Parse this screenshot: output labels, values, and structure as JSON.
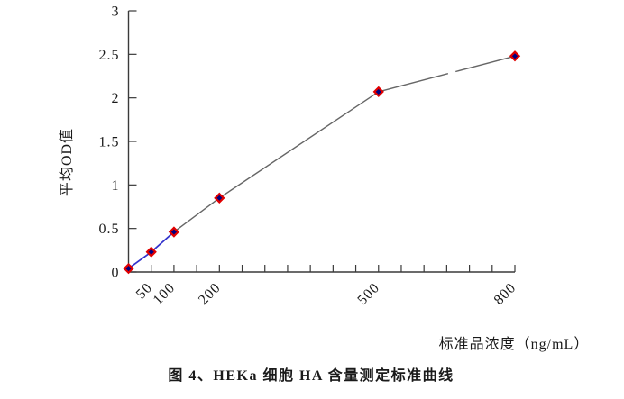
{
  "chart_data": {
    "type": "line",
    "title": "图 4、HEKa 细胞 HA 含量测定标准曲线",
    "xlabel": "标准品浓度（ng/mL）",
    "ylabel": "平均OD值",
    "x": [
      0,
      50,
      100,
      200,
      500,
      800
    ],
    "values": [
      0.04,
      0.23,
      0.46,
      0.85,
      2.07,
      2.48
    ],
    "ylim": [
      0,
      3
    ],
    "y_tick_values": [
      0,
      0.5,
      1,
      1.5,
      2,
      2.5,
      3
    ],
    "y_tick_labels": [
      "0",
      "0.5",
      "1",
      "1.5",
      "2",
      "2.5",
      "3"
    ],
    "x_tick_labels": [
      "50",
      "100",
      "200",
      "500",
      "800"
    ],
    "x_label_tick_indices": [
      1,
      2,
      4,
      11,
      17
    ],
    "point_tick_indices": [
      0,
      1,
      2,
      4,
      11,
      17
    ],
    "x_axis_minor_tick_intervals": 17,
    "grid": false,
    "legend": "none",
    "marker": "diamond",
    "line_gap_between_x": [
      500,
      800
    ]
  },
  "colors": {
    "background": "#ffffff",
    "axis": "#3a3a3a",
    "text": "#1a1a1a",
    "marker_fill": "#000080",
    "marker_border": "#e10000",
    "line_blue": "#3333cc",
    "line_gray": "#666666"
  }
}
